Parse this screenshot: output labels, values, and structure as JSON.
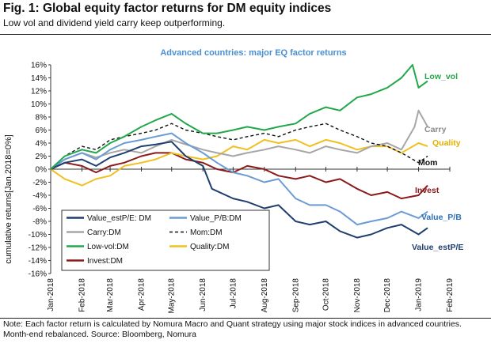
{
  "header": {
    "title": "Fig. 1: Global equity factor returns for DM equity indices",
    "subtitle": "Low vol and dividend yield carry keep outperforming."
  },
  "footer": {
    "note": "Note: Each factor return is calculated by Nomura Macro and Quant strategy using major stock indices in advanced countries. Month-end rebalanced. Source: Bloomberg, Nomura"
  },
  "chart_data": {
    "type": "line",
    "title": "Advanced countries: major EQ factor returns",
    "ylabel": "cumulative returns[Jan.2018=0%]",
    "xlabel": "",
    "ylim": [
      -16,
      16
    ],
    "yticks": [
      "16%",
      "14%",
      "12%",
      "10%",
      "8%",
      "6%",
      "4%",
      "2%",
      "0%",
      "-2%",
      "-4%",
      "-6%",
      "-8%",
      "-10%",
      "-12%",
      "-14%",
      "-16%"
    ],
    "xticks": [
      "Jan-2018",
      "Feb-2018",
      "Mar-2018",
      "Apr-2018",
      "May-2018",
      "Jun-2018",
      "Jul-2018",
      "Aug-2018",
      "Sep-2018",
      "Oct-2018",
      "Nov-2018",
      "Dec-2018",
      "Jan-2019",
      "Feb-2019"
    ],
    "grid": false,
    "legend_position": "bottom-left",
    "series": [
      {
        "name": "Value_estP/E: DM",
        "label": "Value_estP/E",
        "color": "#1f3f6e",
        "dash": "",
        "points": [
          [
            "2018-01-01",
            0
          ],
          [
            "2018-01-15",
            1.0
          ],
          [
            "2018-02-01",
            1.5
          ],
          [
            "2018-02-15",
            0.5
          ],
          [
            "2018-03-01",
            1.8
          ],
          [
            "2018-03-15",
            2.5
          ],
          [
            "2018-04-01",
            3.5
          ],
          [
            "2018-04-15",
            3.8
          ],
          [
            "2018-05-01",
            4.2
          ],
          [
            "2018-05-15",
            2.0
          ],
          [
            "2018-06-01",
            0.5
          ],
          [
            "2018-06-10",
            -3.0
          ],
          [
            "2018-07-01",
            -4.5
          ],
          [
            "2018-07-15",
            -5.0
          ],
          [
            "2018-08-01",
            -6.0
          ],
          [
            "2018-08-15",
            -5.5
          ],
          [
            "2018-09-01",
            -8.0
          ],
          [
            "2018-09-15",
            -8.5
          ],
          [
            "2018-10-01",
            -8.0
          ],
          [
            "2018-10-15",
            -9.5
          ],
          [
            "2018-11-01",
            -10.5
          ],
          [
            "2018-11-15",
            -10.0
          ],
          [
            "2018-12-01",
            -9.0
          ],
          [
            "2018-12-15",
            -8.5
          ],
          [
            "2019-01-01",
            -10.0
          ],
          [
            "2019-01-10",
            -9.0
          ]
        ]
      },
      {
        "name": "Value_P/B:DM",
        "label": "Value_P/B",
        "color": "#6b9bd4",
        "dash": "",
        "points": [
          [
            "2018-01-01",
            0
          ],
          [
            "2018-01-15",
            1.5
          ],
          [
            "2018-02-01",
            2.5
          ],
          [
            "2018-02-15",
            1.5
          ],
          [
            "2018-03-01",
            3.0
          ],
          [
            "2018-03-15",
            4.0
          ],
          [
            "2018-04-01",
            4.5
          ],
          [
            "2018-04-15",
            5.0
          ],
          [
            "2018-05-01",
            5.5
          ],
          [
            "2018-05-15",
            4.0
          ],
          [
            "2018-06-01",
            2.5
          ],
          [
            "2018-06-15",
            1.0
          ],
          [
            "2018-07-01",
            -0.5
          ],
          [
            "2018-07-15",
            -1.0
          ],
          [
            "2018-08-01",
            -2.0
          ],
          [
            "2018-08-15",
            -1.5
          ],
          [
            "2018-09-01",
            -4.5
          ],
          [
            "2018-09-15",
            -5.5
          ],
          [
            "2018-10-01",
            -5.5
          ],
          [
            "2018-10-15",
            -6.5
          ],
          [
            "2018-11-01",
            -8.5
          ],
          [
            "2018-11-15",
            -8.0
          ],
          [
            "2018-12-01",
            -7.5
          ],
          [
            "2018-12-15",
            -6.5
          ],
          [
            "2019-01-01",
            -7.5
          ],
          [
            "2019-01-10",
            -6.5
          ]
        ]
      },
      {
        "name": "Carry:DM",
        "label": "Carry",
        "color": "#a6a6a6",
        "dash": "",
        "points": [
          [
            "2018-01-01",
            0
          ],
          [
            "2018-01-15",
            1.5
          ],
          [
            "2018-02-01",
            2.5
          ],
          [
            "2018-02-15",
            1.8
          ],
          [
            "2018-03-01",
            2.5
          ],
          [
            "2018-03-15",
            3.0
          ],
          [
            "2018-04-01",
            2.5
          ],
          [
            "2018-04-15",
            3.5
          ],
          [
            "2018-05-01",
            4.5
          ],
          [
            "2018-05-15",
            3.8
          ],
          [
            "2018-06-01",
            3.0
          ],
          [
            "2018-06-15",
            2.5
          ],
          [
            "2018-07-01",
            2.0
          ],
          [
            "2018-07-15",
            2.5
          ],
          [
            "2018-08-01",
            3.0
          ],
          [
            "2018-08-15",
            3.5
          ],
          [
            "2018-09-01",
            3.0
          ],
          [
            "2018-09-15",
            2.5
          ],
          [
            "2018-10-01",
            3.5
          ],
          [
            "2018-10-15",
            3.0
          ],
          [
            "2018-11-01",
            2.5
          ],
          [
            "2018-11-15",
            3.5
          ],
          [
            "2018-12-01",
            4.0
          ],
          [
            "2018-12-15",
            3.0
          ],
          [
            "2018-12-28",
            6.5
          ],
          [
            "2019-01-01",
            9.0
          ],
          [
            "2019-01-10",
            6.5
          ]
        ]
      },
      {
        "name": "Mom:DM",
        "label": "Mom",
        "color": "#111111",
        "dash": "4,3",
        "points": [
          [
            "2018-01-01",
            0
          ],
          [
            "2018-01-15",
            2.0
          ],
          [
            "2018-02-01",
            3.5
          ],
          [
            "2018-02-15",
            3.0
          ],
          [
            "2018-03-01",
            4.5
          ],
          [
            "2018-03-15",
            5.0
          ],
          [
            "2018-04-01",
            5.5
          ],
          [
            "2018-04-15",
            6.0
          ],
          [
            "2018-05-01",
            7.0
          ],
          [
            "2018-05-15",
            6.0
          ],
          [
            "2018-06-01",
            5.5
          ],
          [
            "2018-06-15",
            5.0
          ],
          [
            "2018-07-01",
            4.5
          ],
          [
            "2018-07-15",
            5.0
          ],
          [
            "2018-08-01",
            5.5
          ],
          [
            "2018-08-15",
            5.0
          ],
          [
            "2018-09-01",
            6.0
          ],
          [
            "2018-09-15",
            6.5
          ],
          [
            "2018-10-01",
            7.0
          ],
          [
            "2018-10-15",
            6.0
          ],
          [
            "2018-11-01",
            5.0
          ],
          [
            "2018-11-15",
            4.0
          ],
          [
            "2018-12-01",
            3.5
          ],
          [
            "2018-12-15",
            2.5
          ],
          [
            "2019-01-01",
            1.0
          ],
          [
            "2019-01-10",
            2.0
          ]
        ]
      },
      {
        "name": "Low-vol:DM",
        "label": "Low_vol",
        "color": "#22a84a",
        "dash": "",
        "points": [
          [
            "2018-01-01",
            0
          ],
          [
            "2018-01-15",
            2.0
          ],
          [
            "2018-02-01",
            3.0
          ],
          [
            "2018-02-15",
            2.5
          ],
          [
            "2018-03-01",
            4.0
          ],
          [
            "2018-03-15",
            5.0
          ],
          [
            "2018-04-01",
            6.5
          ],
          [
            "2018-04-15",
            7.5
          ],
          [
            "2018-05-01",
            8.5
          ],
          [
            "2018-05-15",
            7.0
          ],
          [
            "2018-06-01",
            5.5
          ],
          [
            "2018-06-15",
            5.5
          ],
          [
            "2018-07-01",
            6.0
          ],
          [
            "2018-07-15",
            6.5
          ],
          [
            "2018-08-01",
            6.0
          ],
          [
            "2018-08-15",
            6.5
          ],
          [
            "2018-09-01",
            7.0
          ],
          [
            "2018-09-15",
            8.5
          ],
          [
            "2018-10-01",
            9.5
          ],
          [
            "2018-10-15",
            9.0
          ],
          [
            "2018-11-01",
            11.0
          ],
          [
            "2018-11-15",
            11.5
          ],
          [
            "2018-12-01",
            12.5
          ],
          [
            "2018-12-15",
            14.0
          ],
          [
            "2018-12-26",
            16.0
          ],
          [
            "2019-01-01",
            12.5
          ],
          [
            "2019-01-10",
            13.5
          ]
        ]
      },
      {
        "name": "Quality:DM",
        "label": "Quality",
        "color": "#f0c020",
        "dash": "",
        "points": [
          [
            "2018-01-01",
            0
          ],
          [
            "2018-01-15",
            -1.5
          ],
          [
            "2018-02-01",
            -2.5
          ],
          [
            "2018-02-15",
            -1.5
          ],
          [
            "2018-03-01",
            -1.0
          ],
          [
            "2018-03-15",
            0.5
          ],
          [
            "2018-04-01",
            1.0
          ],
          [
            "2018-04-15",
            1.5
          ],
          [
            "2018-05-01",
            2.5
          ],
          [
            "2018-05-15",
            2.0
          ],
          [
            "2018-06-01",
            1.5
          ],
          [
            "2018-06-15",
            2.0
          ],
          [
            "2018-07-01",
            3.5
          ],
          [
            "2018-07-15",
            3.0
          ],
          [
            "2018-08-01",
            4.5
          ],
          [
            "2018-08-15",
            4.0
          ],
          [
            "2018-09-01",
            4.5
          ],
          [
            "2018-09-15",
            3.5
          ],
          [
            "2018-10-01",
            4.5
          ],
          [
            "2018-10-15",
            4.0
          ],
          [
            "2018-11-01",
            3.0
          ],
          [
            "2018-11-15",
            3.5
          ],
          [
            "2018-12-01",
            3.5
          ],
          [
            "2018-12-15",
            2.5
          ],
          [
            "2019-01-01",
            4.0
          ],
          [
            "2019-01-10",
            3.5
          ]
        ]
      },
      {
        "name": "Invest:DM",
        "label": "Invest",
        "color": "#8b1a1a",
        "dash": "",
        "points": [
          [
            "2018-01-01",
            0
          ],
          [
            "2018-01-15",
            1.0
          ],
          [
            "2018-02-01",
            0.5
          ],
          [
            "2018-02-15",
            -0.5
          ],
          [
            "2018-03-01",
            0.5
          ],
          [
            "2018-03-15",
            1.0
          ],
          [
            "2018-04-01",
            2.0
          ],
          [
            "2018-04-15",
            2.5
          ],
          [
            "2018-05-01",
            2.5
          ],
          [
            "2018-05-15",
            1.5
          ],
          [
            "2018-06-01",
            1.0
          ],
          [
            "2018-06-15",
            0.0
          ],
          [
            "2018-07-01",
            -0.5
          ],
          [
            "2018-07-15",
            0.5
          ],
          [
            "2018-08-01",
            0.0
          ],
          [
            "2018-08-15",
            -1.0
          ],
          [
            "2018-09-01",
            -1.5
          ],
          [
            "2018-09-15",
            -1.0
          ],
          [
            "2018-10-01",
            -2.0
          ],
          [
            "2018-10-15",
            -1.5
          ],
          [
            "2018-11-01",
            -3.0
          ],
          [
            "2018-11-15",
            -4.0
          ],
          [
            "2018-12-01",
            -3.5
          ],
          [
            "2018-12-15",
            -4.5
          ],
          [
            "2019-01-01",
            -4.0
          ],
          [
            "2019-01-10",
            -2.5
          ]
        ]
      }
    ]
  }
}
